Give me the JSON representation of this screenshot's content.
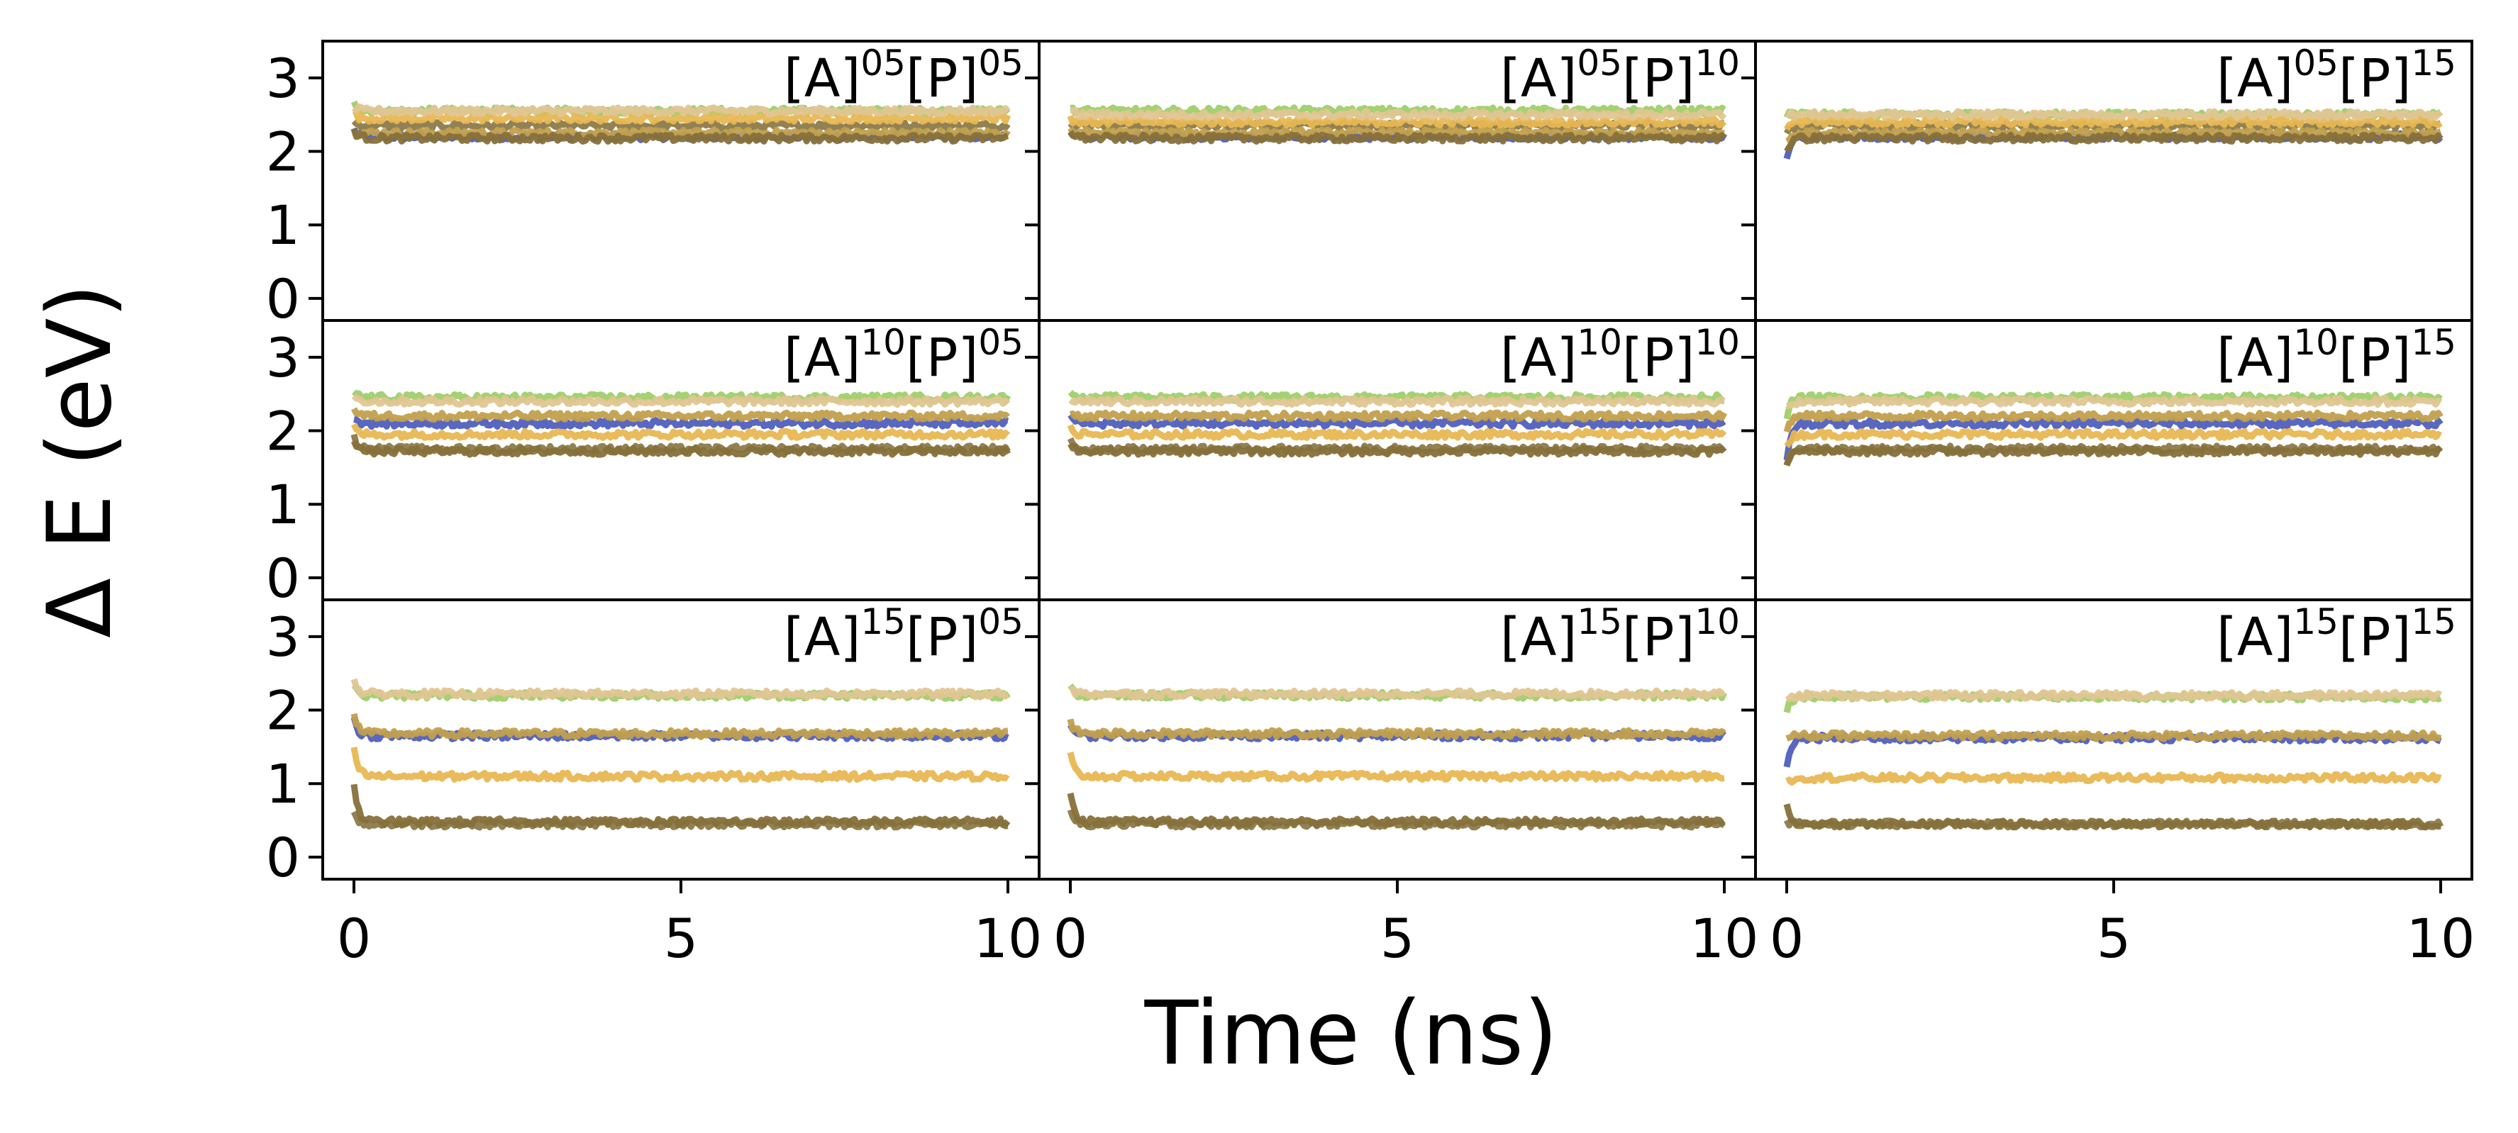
{
  "chart_data": {
    "type": "line",
    "layout": "3x3 grid of panels, shared axes",
    "xlabel": "Time (ns)",
    "ylabel": "Δ E (eV)",
    "xlim": [
      0,
      10
    ],
    "ylim": [
      -0.3,
      3.5
    ],
    "xticks": [
      0,
      5,
      10
    ],
    "xtick_labels": [
      "0",
      "5",
      "10"
    ],
    "yticks": [
      0,
      1,
      2,
      3
    ],
    "ytick_labels": [
      "0",
      "1",
      "2",
      "3"
    ],
    "series_colors": [
      "#4f5fbf",
      "#9fcf6a",
      "#8c7a4a",
      "#c2a04c",
      "#e8b752",
      "#e2c592",
      "#87703a"
    ],
    "panels": [
      {
        "label": {
          "a": "[A]",
          "a_sup": "05",
          "p": "[P]",
          "p_sup": "05"
        },
        "levels": [
          2.2,
          2.55,
          2.35,
          2.25,
          2.45,
          2.55,
          2.18
        ],
        "start": [
          2.3,
          2.7,
          2.4,
          2.3,
          2.5,
          2.6,
          2.3
        ]
      },
      {
        "label": {
          "a": "[A]",
          "a_sup": "05",
          "p": "[P]",
          "p_sup": "10"
        },
        "levels": [
          2.2,
          2.55,
          2.35,
          2.25,
          2.4,
          2.5,
          2.18
        ],
        "start": [
          2.3,
          2.6,
          2.4,
          2.3,
          2.45,
          2.55,
          2.3
        ]
      },
      {
        "label": {
          "a": "[A]",
          "a_sup": "05",
          "p": "[P]",
          "p_sup": "15"
        },
        "levels": [
          2.2,
          2.5,
          2.35,
          2.25,
          2.4,
          2.5,
          2.18
        ],
        "start": [
          1.9,
          2.5,
          2.2,
          2.1,
          2.3,
          2.5,
          2.0
        ]
      },
      {
        "label": {
          "a": "[A]",
          "a_sup": "10",
          "p": "[P]",
          "p_sup": "05"
        },
        "levels": [
          2.1,
          2.45,
          1.75,
          2.2,
          1.95,
          2.4,
          1.72
        ],
        "start": [
          2.2,
          2.55,
          1.95,
          2.3,
          2.05,
          2.5,
          1.9
        ]
      },
      {
        "label": {
          "a": "[A]",
          "a_sup": "10",
          "p": "[P]",
          "p_sup": "10"
        },
        "levels": [
          2.1,
          2.45,
          1.75,
          2.2,
          1.95,
          2.4,
          1.72
        ],
        "start": [
          2.2,
          2.5,
          1.85,
          2.25,
          2.05,
          2.45,
          1.85
        ]
      },
      {
        "label": {
          "a": "[A]",
          "a_sup": "10",
          "p": "[P]",
          "p_sup": "15"
        },
        "levels": [
          2.1,
          2.45,
          1.75,
          2.2,
          1.95,
          2.4,
          1.72
        ],
        "start": [
          1.6,
          2.2,
          1.5,
          2.0,
          1.8,
          2.3,
          1.5
        ]
      },
      {
        "label": {
          "a": "[A]",
          "a_sup": "15",
          "p": "[P]",
          "p_sup": "05"
        },
        "levels": [
          1.65,
          2.2,
          0.45,
          1.68,
          1.1,
          2.22,
          0.48
        ],
        "start": [
          1.9,
          2.35,
          0.6,
          1.95,
          1.5,
          2.4,
          1.0
        ]
      },
      {
        "label": {
          "a": "[A]",
          "a_sup": "15",
          "p": "[P]",
          "p_sup": "10"
        },
        "levels": [
          1.65,
          2.2,
          0.45,
          1.68,
          1.1,
          2.22,
          0.48
        ],
        "start": [
          1.8,
          2.3,
          0.6,
          1.85,
          1.4,
          2.3,
          0.9
        ]
      },
      {
        "label": {
          "a": "[A]",
          "a_sup": "15",
          "p": "[P]",
          "p_sup": "15"
        },
        "levels": [
          1.62,
          2.18,
          0.45,
          1.65,
          1.08,
          2.2,
          0.45
        ],
        "start": [
          1.2,
          2.0,
          0.5,
          1.6,
          1.0,
          2.1,
          0.75
        ]
      }
    ]
  }
}
